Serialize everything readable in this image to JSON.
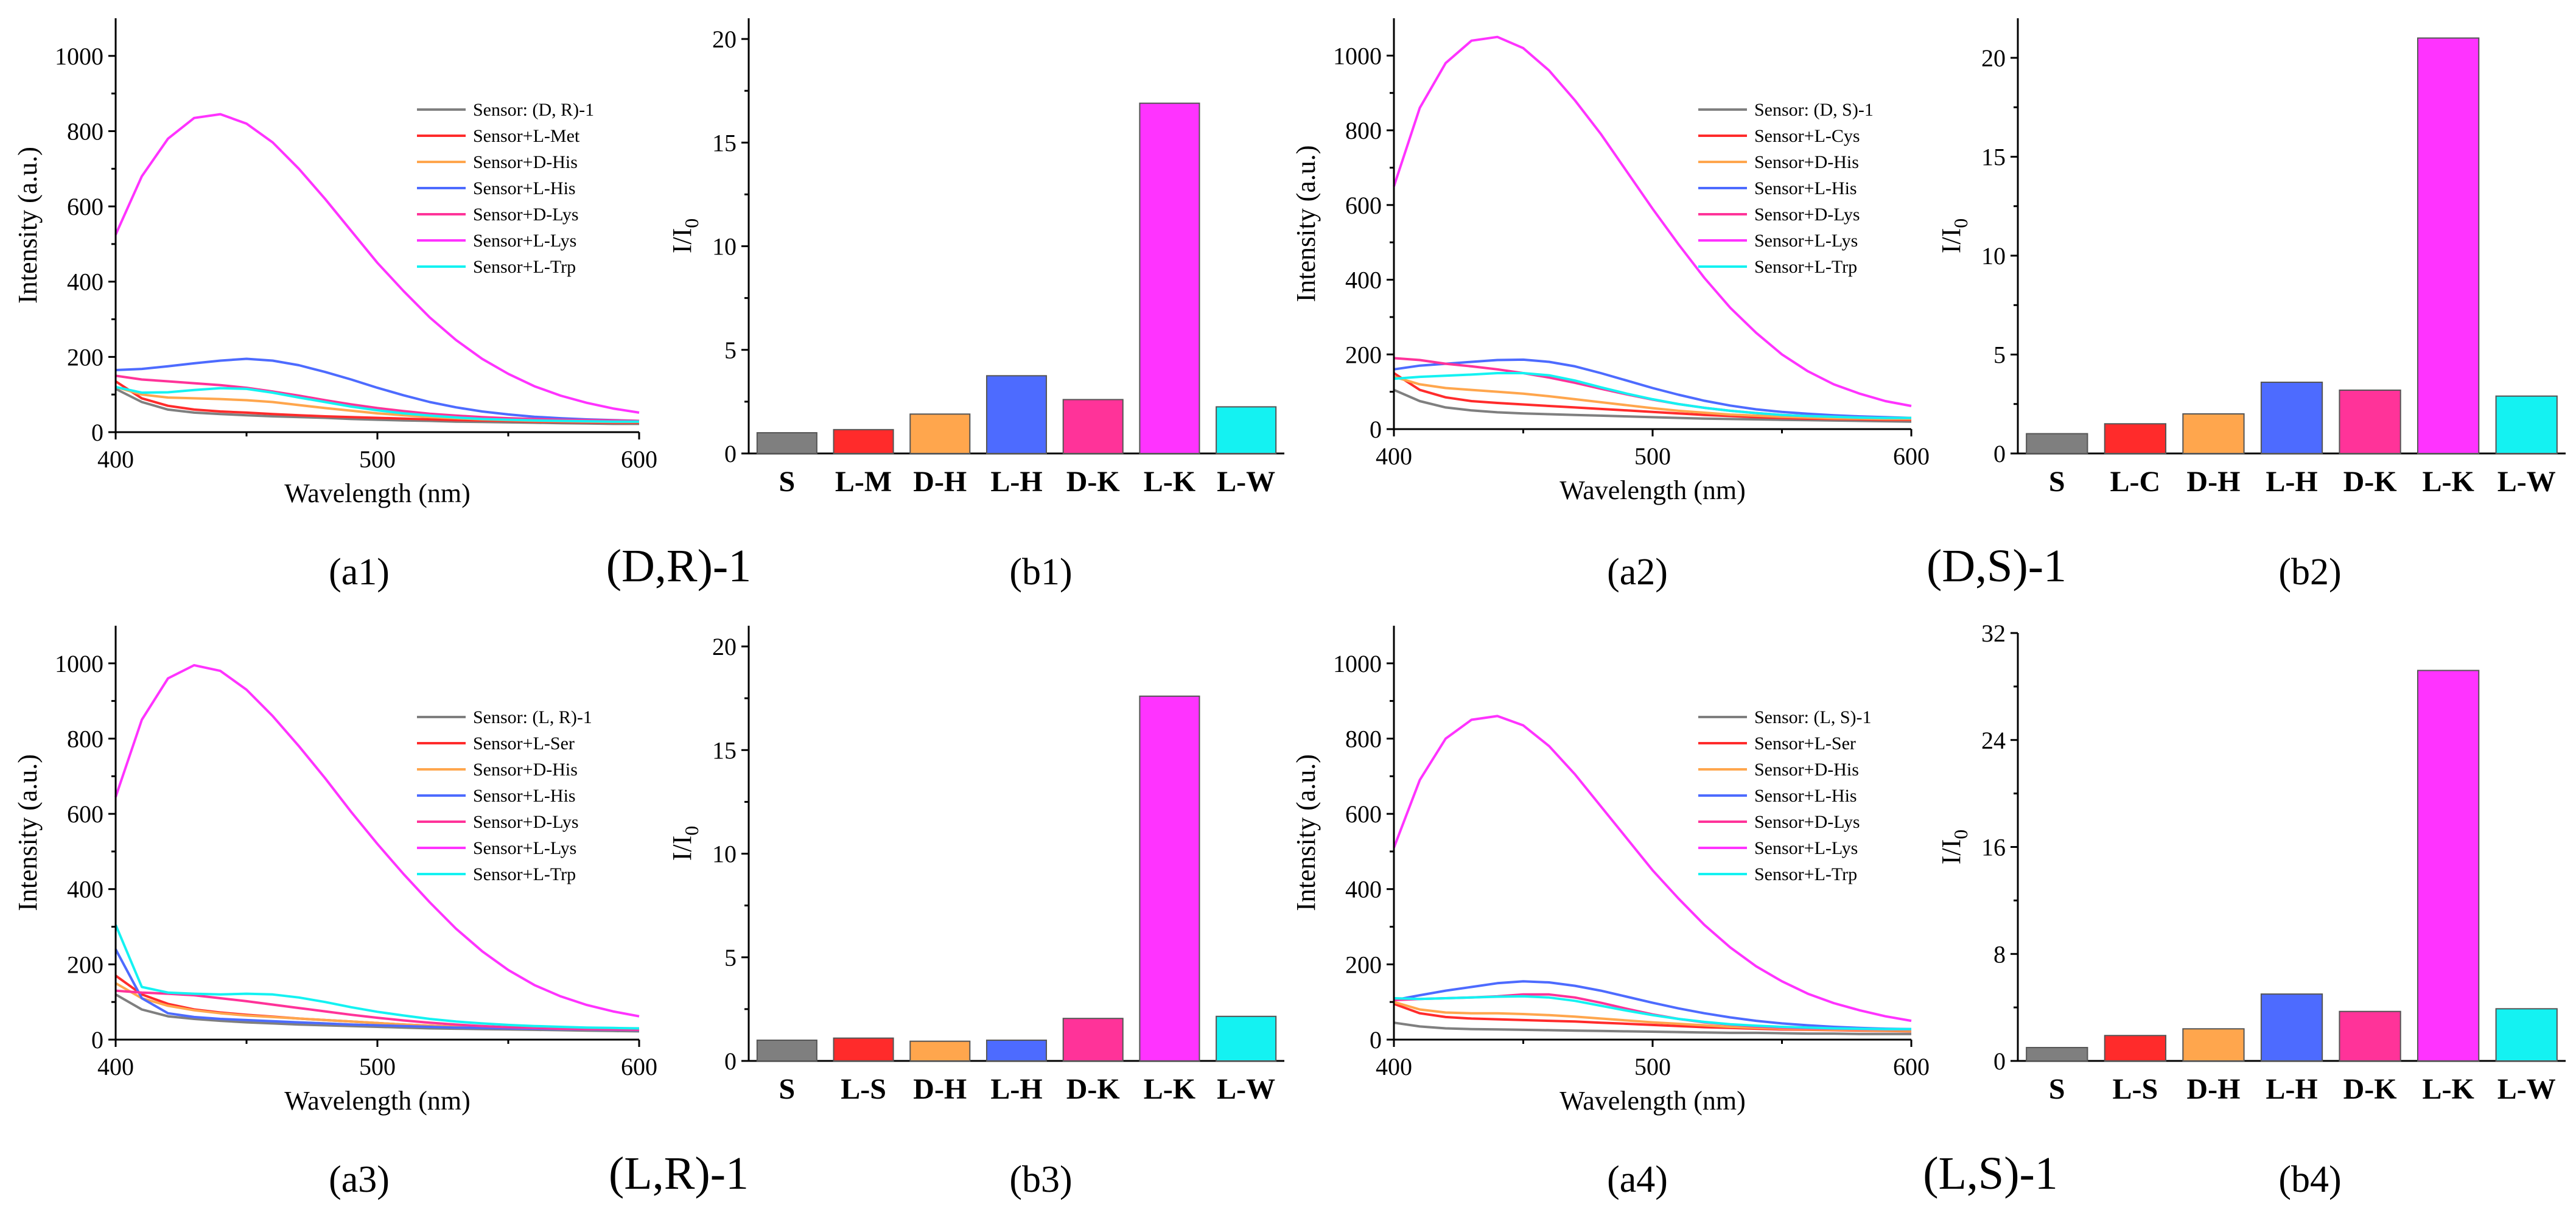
{
  "colors": {
    "sensor": "#7f7f7f",
    "cys_met_ser": "#ff2b2b",
    "d_his": "#ffa64d",
    "l_his": "#4d6bff",
    "d_lys": "#ff3399",
    "l_lys": "#ff33ff",
    "l_trp": "#14f2f2"
  },
  "chart_data": [
    {
      "type": "line",
      "panel_label": "(a1)",
      "group_label": "(D,R)-1",
      "xlabel": "Wavelength (nm)",
      "ylabel": "Intensity (a.u.)",
      "xlim": [
        400,
        600
      ],
      "ylim": [
        0,
        1100
      ],
      "xticks": [
        "400",
        "500",
        "600"
      ],
      "yticks": [
        "0",
        "200",
        "400",
        "600",
        "800",
        "1000"
      ],
      "x": [
        400,
        410,
        420,
        430,
        440,
        450,
        460,
        470,
        480,
        490,
        500,
        510,
        520,
        530,
        540,
        550,
        560,
        570,
        580,
        590,
        600
      ],
      "series": [
        {
          "name": "Sensor: (D, R)-1",
          "color_key": "sensor",
          "values": [
            115,
            80,
            60,
            52,
            48,
            45,
            42,
            40,
            38,
            35,
            33,
            31,
            30,
            28,
            27,
            26,
            25,
            24,
            23,
            22,
            22
          ]
        },
        {
          "name": "Sensor+L-Met",
          "color_key": "cys_met_ser",
          "values": [
            135,
            90,
            70,
            60,
            55,
            52,
            48,
            45,
            42,
            40,
            38,
            36,
            34,
            32,
            31,
            30,
            28,
            27,
            26,
            25,
            25
          ]
        },
        {
          "name": "Sensor+D-His",
          "color_key": "d_his",
          "values": [
            120,
            100,
            92,
            90,
            88,
            85,
            80,
            72,
            64,
            57,
            50,
            45,
            40,
            37,
            34,
            32,
            30,
            29,
            28,
            27,
            27
          ]
        },
        {
          "name": "Sensor+L-His",
          "color_key": "l_his",
          "values": [
            165,
            168,
            175,
            183,
            190,
            195,
            190,
            178,
            160,
            140,
            118,
            98,
            80,
            66,
            55,
            47,
            41,
            37,
            34,
            32,
            30
          ]
        },
        {
          "name": "Sensor+D-Lys",
          "color_key": "d_lys",
          "values": [
            150,
            140,
            135,
            130,
            125,
            118,
            108,
            97,
            85,
            74,
            64,
            56,
            49,
            44,
            40,
            37,
            35,
            33,
            32,
            31,
            30
          ]
        },
        {
          "name": "Sensor+L-Lys",
          "color_key": "l_lys",
          "values": [
            525,
            680,
            780,
            835,
            845,
            820,
            770,
            700,
            620,
            535,
            450,
            375,
            305,
            245,
            195,
            155,
            122,
            97,
            78,
            63,
            52
          ]
        },
        {
          "name": "Sensor+L-Trp",
          "color_key": "l_trp",
          "values": [
            120,
            105,
            106,
            112,
            117,
            115,
            105,
            92,
            80,
            68,
            58,
            50,
            44,
            39,
            35,
            33,
            31,
            30,
            29,
            28,
            28
          ]
        }
      ]
    },
    {
      "type": "bar",
      "panel_label": "(b1)",
      "ylabel": "I/I0",
      "ylim": [
        0,
        21
      ],
      "yticks": [
        "0",
        "5",
        "10",
        "15",
        "20"
      ],
      "categories": [
        "S",
        "L-M",
        "D-H",
        "L-H",
        "D-K",
        "L-K",
        "L-W"
      ],
      "color_keys": [
        "sensor",
        "cys_met_ser",
        "d_his",
        "l_his",
        "d_lys",
        "l_lys",
        "l_trp"
      ],
      "values": [
        1.0,
        1.15,
        1.9,
        3.75,
        2.6,
        16.9,
        2.25
      ]
    },
    {
      "type": "line",
      "panel_label": "(a2)",
      "group_label": "(D,S)-1",
      "xlabel": "Wavelength (nm)",
      "ylabel": "Intensity (a.u.)",
      "xlim": [
        400,
        600
      ],
      "ylim": [
        0,
        1100
      ],
      "xticks": [
        "400",
        "500",
        "600"
      ],
      "yticks": [
        "0",
        "200",
        "400",
        "600",
        "800",
        "1000"
      ],
      "x": [
        400,
        410,
        420,
        430,
        440,
        450,
        460,
        470,
        480,
        490,
        500,
        510,
        520,
        530,
        540,
        550,
        560,
        570,
        580,
        590,
        600
      ],
      "series": [
        {
          "name": "Sensor: (D, S)-1",
          "color_key": "sensor",
          "values": [
            105,
            75,
            58,
            50,
            45,
            42,
            40,
            38,
            36,
            34,
            32,
            30,
            28,
            27,
            26,
            25,
            24,
            23,
            22,
            21,
            20
          ]
        },
        {
          "name": "Sensor+L-Cys",
          "color_key": "cys_met_ser",
          "values": [
            150,
            105,
            85,
            75,
            70,
            66,
            62,
            58,
            54,
            50,
            46,
            42,
            38,
            35,
            32,
            30,
            28,
            27,
            26,
            25,
            25
          ]
        },
        {
          "name": "Sensor+D-His",
          "color_key": "d_his",
          "values": [
            140,
            120,
            110,
            105,
            100,
            95,
            88,
            80,
            72,
            64,
            56,
            49,
            44,
            39,
            36,
            33,
            31,
            29,
            28,
            27,
            27
          ]
        },
        {
          "name": "Sensor+L-His",
          "color_key": "l_his",
          "values": [
            160,
            170,
            175,
            180,
            185,
            186,
            180,
            168,
            150,
            130,
            110,
            92,
            76,
            63,
            53,
            46,
            41,
            37,
            34,
            32,
            30
          ]
        },
        {
          "name": "Sensor+D-Lys",
          "color_key": "d_lys",
          "values": [
            190,
            185,
            175,
            168,
            160,
            150,
            138,
            124,
            108,
            93,
            79,
            67,
            57,
            49,
            43,
            38,
            35,
            33,
            31,
            30,
            30
          ]
        },
        {
          "name": "Sensor+L-Lys",
          "color_key": "l_lys",
          "values": [
            650,
            860,
            980,
            1040,
            1050,
            1020,
            960,
            880,
            790,
            690,
            590,
            495,
            405,
            325,
            258,
            200,
            155,
            120,
            95,
            75,
            62
          ]
        },
        {
          "name": "Sensor+L-Trp",
          "color_key": "l_trp",
          "values": [
            135,
            140,
            143,
            146,
            150,
            150,
            144,
            130,
            112,
            95,
            80,
            67,
            57,
            49,
            43,
            38,
            35,
            33,
            31,
            30,
            30
          ]
        }
      ]
    },
    {
      "type": "bar",
      "panel_label": "(b2)",
      "ylabel": "I/I0",
      "ylim": [
        0,
        22
      ],
      "yticks": [
        "0",
        "5",
        "10",
        "15",
        "20"
      ],
      "categories": [
        "S",
        "L-C",
        "D-H",
        "L-H",
        "D-K",
        "L-K",
        "L-W"
      ],
      "color_keys": [
        "sensor",
        "cys_met_ser",
        "d_his",
        "l_his",
        "d_lys",
        "l_lys",
        "l_trp"
      ],
      "values": [
        1.0,
        1.5,
        2.0,
        3.6,
        3.2,
        21.0,
        2.9
      ]
    },
    {
      "type": "line",
      "panel_label": "(a3)",
      "group_label": "(L,R)-1",
      "xlabel": "Wavelength (nm)",
      "ylabel": "Intensity (a.u.)",
      "xlim": [
        400,
        600
      ],
      "ylim": [
        0,
        1100
      ],
      "xticks": [
        "400",
        "500",
        "600"
      ],
      "yticks": [
        "0",
        "200",
        "400",
        "600",
        "800",
        "1000"
      ],
      "x": [
        400,
        410,
        420,
        430,
        440,
        450,
        460,
        470,
        480,
        490,
        500,
        510,
        520,
        530,
        540,
        550,
        560,
        570,
        580,
        590,
        600
      ],
      "series": [
        {
          "name": "Sensor: (L, R)-1",
          "color_key": "sensor",
          "values": [
            120,
            80,
            62,
            55,
            50,
            46,
            43,
            40,
            38,
            36,
            34,
            32,
            30,
            29,
            28,
            27,
            26,
            25,
            24,
            23,
            22
          ]
        },
        {
          "name": "Sensor+L-Ser",
          "color_key": "cys_met_ser",
          "values": [
            170,
            120,
            95,
            80,
            72,
            66,
            61,
            56,
            52,
            48,
            44,
            40,
            37,
            34,
            32,
            30,
            29,
            28,
            27,
            26,
            25
          ]
        },
        {
          "name": "Sensor+D-His",
          "color_key": "d_his",
          "values": [
            150,
            110,
            90,
            78,
            70,
            64,
            60,
            56,
            52,
            48,
            44,
            40,
            37,
            34,
            32,
            30,
            29,
            28,
            27,
            26,
            25
          ]
        },
        {
          "name": "Sensor+L-His",
          "color_key": "l_his",
          "values": [
            240,
            110,
            70,
            60,
            55,
            52,
            49,
            46,
            43,
            40,
            38,
            36,
            34,
            32,
            31,
            30,
            29,
            28,
            27,
            26,
            25
          ]
        },
        {
          "name": "Sensor+D-Lys",
          "color_key": "d_lys",
          "values": [
            130,
            125,
            122,
            118,
            110,
            102,
            93,
            84,
            75,
            66,
            58,
            51,
            45,
            40,
            36,
            33,
            31,
            29,
            28,
            27,
            26
          ]
        },
        {
          "name": "Sensor+L-Lys",
          "color_key": "l_lys",
          "values": [
            645,
            850,
            960,
            995,
            980,
            930,
            860,
            780,
            695,
            605,
            520,
            440,
            365,
            295,
            235,
            185,
            145,
            115,
            92,
            75,
            62
          ]
        },
        {
          "name": "Sensor+L-Trp",
          "color_key": "l_trp",
          "values": [
            305,
            140,
            125,
            122,
            120,
            122,
            120,
            112,
            100,
            86,
            74,
            64,
            55,
            48,
            43,
            39,
            36,
            34,
            32,
            31,
            30
          ]
        }
      ]
    },
    {
      "type": "bar",
      "panel_label": "(b3)",
      "ylabel": "I/I0",
      "ylim": [
        0,
        21
      ],
      "yticks": [
        "0",
        "5",
        "10",
        "15",
        "20"
      ],
      "categories": [
        "S",
        "L-S",
        "D-H",
        "L-H",
        "D-K",
        "L-K",
        "L-W"
      ],
      "color_keys": [
        "sensor",
        "cys_met_ser",
        "d_his",
        "l_his",
        "d_lys",
        "l_lys",
        "l_trp"
      ],
      "values": [
        1.0,
        1.1,
        0.95,
        1.0,
        2.05,
        17.6,
        2.15
      ]
    },
    {
      "type": "line",
      "panel_label": "(a4)",
      "group_label": "(L,S)-1",
      "xlabel": "Wavelength (nm)",
      "ylabel": "Intensity (a.u.)",
      "xlim": [
        400,
        600
      ],
      "ylim": [
        0,
        1100
      ],
      "xticks": [
        "400",
        "500",
        "600"
      ],
      "yticks": [
        "0",
        "200",
        "400",
        "600",
        "800",
        "1000"
      ],
      "x": [
        400,
        410,
        420,
        430,
        440,
        450,
        460,
        470,
        480,
        490,
        500,
        510,
        520,
        530,
        540,
        550,
        560,
        570,
        580,
        590,
        600
      ],
      "series": [
        {
          "name": "Sensor: (L, S)-1",
          "color_key": "sensor",
          "values": [
            45,
            35,
            30,
            28,
            27,
            26,
            25,
            24,
            23,
            22,
            21,
            20,
            19,
            18,
            18,
            17,
            16,
            16,
            15,
            15,
            15
          ]
        },
        {
          "name": "Sensor+L-Ser",
          "color_key": "cys_met_ser",
          "values": [
            95,
            70,
            60,
            56,
            54,
            52,
            50,
            48,
            45,
            42,
            39,
            36,
            33,
            31,
            29,
            27,
            26,
            25,
            24,
            23,
            22
          ]
        },
        {
          "name": "Sensor+D-His",
          "color_key": "d_his",
          "values": [
            100,
            80,
            72,
            70,
            70,
            68,
            65,
            61,
            56,
            51,
            46,
            42,
            38,
            34,
            31,
            29,
            27,
            26,
            25,
            24,
            23
          ]
        },
        {
          "name": "Sensor+L-His",
          "color_key": "l_his",
          "values": [
            105,
            118,
            130,
            140,
            150,
            155,
            152,
            143,
            130,
            114,
            98,
            83,
            70,
            59,
            50,
            43,
            38,
            34,
            31,
            29,
            28
          ]
        },
        {
          "name": "Sensor+D-Lys",
          "color_key": "d_lys",
          "values": [
            105,
            108,
            110,
            112,
            115,
            120,
            120,
            112,
            98,
            82,
            67,
            55,
            46,
            40,
            35,
            32,
            30,
            29,
            28,
            27,
            27
          ]
        },
        {
          "name": "Sensor+L-Lys",
          "color_key": "l_lys",
          "values": [
            510,
            690,
            800,
            850,
            860,
            835,
            780,
            705,
            620,
            535,
            450,
            375,
            305,
            245,
            195,
            155,
            122,
            97,
            78,
            62,
            50
          ]
        },
        {
          "name": "Sensor+L-Trp",
          "color_key": "l_trp",
          "values": [
            110,
            108,
            110,
            112,
            114,
            115,
            112,
            103,
            90,
            77,
            65,
            55,
            47,
            41,
            37,
            34,
            32,
            30,
            29,
            28,
            28
          ]
        }
      ]
    },
    {
      "type": "bar",
      "panel_label": "(b4)",
      "ylabel": "I/I0",
      "ylim": [
        0,
        32
      ],
      "yticks": [
        "0",
        "8",
        "16",
        "24",
        "32"
      ],
      "categories": [
        "S",
        "L-S",
        "D-H",
        "L-H",
        "D-K",
        "L-K",
        "L-W"
      ],
      "color_keys": [
        "sensor",
        "cys_met_ser",
        "d_his",
        "l_his",
        "d_lys",
        "l_lys",
        "l_trp"
      ],
      "values": [
        1.0,
        1.9,
        2.4,
        5.0,
        3.7,
        29.2,
        3.9
      ]
    }
  ]
}
